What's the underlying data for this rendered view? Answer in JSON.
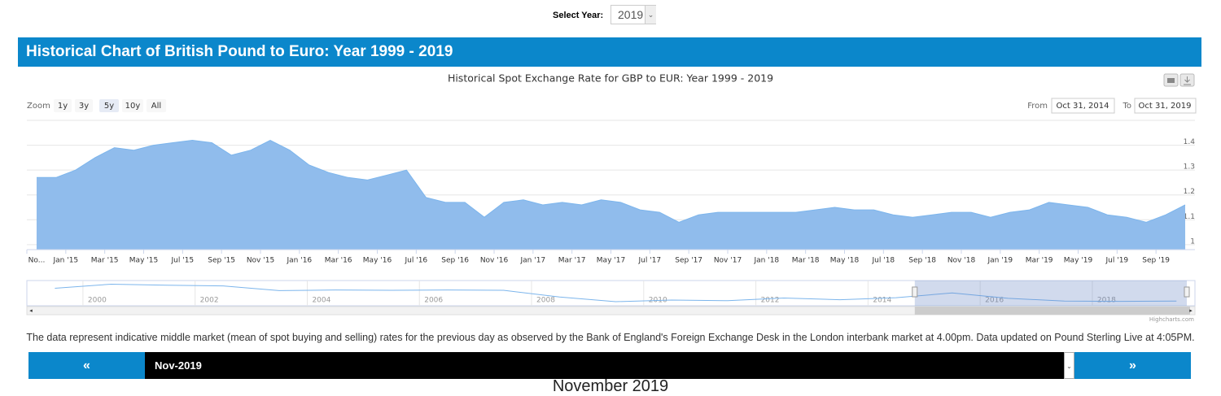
{
  "header": {
    "select_label": "Select Year:",
    "select_value": "2019",
    "title": "Historical Chart of British Pound to Euro: Year 1999 - 2019"
  },
  "chart_data": {
    "type": "area",
    "title": "Historical Spot Exchange Rate for GBP to EUR: Year 1999 - 2019",
    "color": "#90bcec",
    "line_color": "#7cb5ec",
    "x": [
      "2014-11",
      "2014-12",
      "2015-01",
      "2015-02",
      "2015-03",
      "2015-04",
      "2015-05",
      "2015-06",
      "2015-07",
      "2015-08",
      "2015-09",
      "2015-10",
      "2015-11",
      "2015-12",
      "2016-01",
      "2016-02",
      "2016-03",
      "2016-04",
      "2016-05",
      "2016-06",
      "2016-07",
      "2016-08",
      "2016-09",
      "2016-10",
      "2016-11",
      "2016-12",
      "2017-01",
      "2017-02",
      "2017-03",
      "2017-04",
      "2017-05",
      "2017-06",
      "2017-07",
      "2017-08",
      "2017-09",
      "2017-10",
      "2017-11",
      "2017-12",
      "2018-01",
      "2018-02",
      "2018-03",
      "2018-04",
      "2018-05",
      "2018-06",
      "2018-07",
      "2018-08",
      "2018-09",
      "2018-10",
      "2018-11",
      "2018-12",
      "2019-01",
      "2019-02",
      "2019-03",
      "2019-04",
      "2019-05",
      "2019-06",
      "2019-07",
      "2019-08",
      "2019-09",
      "2019-10"
    ],
    "values": [
      1.27,
      1.27,
      1.3,
      1.35,
      1.39,
      1.38,
      1.4,
      1.41,
      1.42,
      1.41,
      1.36,
      1.38,
      1.42,
      1.38,
      1.32,
      1.29,
      1.27,
      1.26,
      1.28,
      1.3,
      1.19,
      1.17,
      1.17,
      1.11,
      1.17,
      1.18,
      1.16,
      1.17,
      1.16,
      1.18,
      1.17,
      1.14,
      1.13,
      1.09,
      1.12,
      1.13,
      1.13,
      1.13,
      1.13,
      1.13,
      1.14,
      1.15,
      1.14,
      1.14,
      1.12,
      1.11,
      1.12,
      1.13,
      1.13,
      1.11,
      1.13,
      1.14,
      1.17,
      1.16,
      1.15,
      1.12,
      1.11,
      1.09,
      1.12,
      1.16
    ],
    "xlim": [
      "2014-11",
      "2019-11"
    ],
    "xticks": [
      {
        "value": "2014-11",
        "label": "No..."
      },
      {
        "value": "2015-01",
        "label": "Jan '15"
      },
      {
        "value": "2015-03",
        "label": "Mar '15"
      },
      {
        "value": "2015-05",
        "label": "May '15"
      },
      {
        "value": "2015-07",
        "label": "Jul '15"
      },
      {
        "value": "2015-09",
        "label": "Sep '15"
      },
      {
        "value": "2015-11",
        "label": "Nov '15"
      },
      {
        "value": "2016-01",
        "label": "Jan '16"
      },
      {
        "value": "2016-03",
        "label": "Mar '16"
      },
      {
        "value": "2016-05",
        "label": "May '16"
      },
      {
        "value": "2016-07",
        "label": "Jul '16"
      },
      {
        "value": "2016-09",
        "label": "Sep '16"
      },
      {
        "value": "2016-11",
        "label": "Nov '16"
      },
      {
        "value": "2017-01",
        "label": "Jan '17"
      },
      {
        "value": "2017-03",
        "label": "Mar '17"
      },
      {
        "value": "2017-05",
        "label": "May '17"
      },
      {
        "value": "2017-07",
        "label": "Jul '17"
      },
      {
        "value": "2017-09",
        "label": "Sep '17"
      },
      {
        "value": "2017-11",
        "label": "Nov '17"
      },
      {
        "value": "2018-01",
        "label": "Jan '18"
      },
      {
        "value": "2018-03",
        "label": "Mar '18"
      },
      {
        "value": "2018-05",
        "label": "May '18"
      },
      {
        "value": "2018-07",
        "label": "Jul '18"
      },
      {
        "value": "2018-09",
        "label": "Sep '18"
      },
      {
        "value": "2018-11",
        "label": "Nov '18"
      },
      {
        "value": "2019-01",
        "label": "Jan '19"
      },
      {
        "value": "2019-03",
        "label": "Mar '19"
      },
      {
        "value": "2019-05",
        "label": "May '19"
      },
      {
        "value": "2019-07",
        "label": "Jul '19"
      },
      {
        "value": "2019-09",
        "label": "Sep '19"
      }
    ],
    "ylim": [
      0.98,
      1.5
    ],
    "yticks": [
      1,
      1.1,
      1.2,
      1.3,
      1.4
    ],
    "grid": true,
    "zoom_label": "Zoom",
    "zoom_buttons": [
      "1y",
      "3y",
      "5y",
      "10y",
      "All"
    ],
    "zoom_selected": "5y",
    "from_label": "From",
    "from_value": "Oct 31, 2014",
    "to_label": "To",
    "to_value": "Oct 31, 2019",
    "credits": "Highcharts.com",
    "navigator": {
      "x": [
        1999,
        2000,
        2001,
        2002,
        2003,
        2004,
        2005,
        2006,
        2007,
        2008,
        2009,
        2010,
        2011,
        2012,
        2013,
        2014,
        2015,
        2016,
        2017,
        2018,
        2019
      ],
      "values": [
        1.52,
        1.64,
        1.61,
        1.59,
        1.45,
        1.47,
        1.46,
        1.47,
        1.46,
        1.26,
        1.12,
        1.17,
        1.15,
        1.23,
        1.18,
        1.24,
        1.38,
        1.22,
        1.14,
        1.13,
        1.14
      ],
      "xlim": [
        1999,
        2019.83
      ],
      "ylim": [
        1.0,
        1.75
      ],
      "xticks": [
        2000,
        2002,
        2004,
        2006,
        2008,
        2010,
        2012,
        2014,
        2016,
        2018
      ]
    }
  },
  "footnote": "The data represent indicative middle market (mean of spot buying and selling) rates for the previous day as observed by the Bank of England's Foreign Exchange Desk in the London interbank market at 4.00pm. Data updated on Pound Sterling Live at 4:05PM.",
  "pager": {
    "prev": "«",
    "current": "Nov-2019",
    "next": "»",
    "heading": "November 2019"
  }
}
